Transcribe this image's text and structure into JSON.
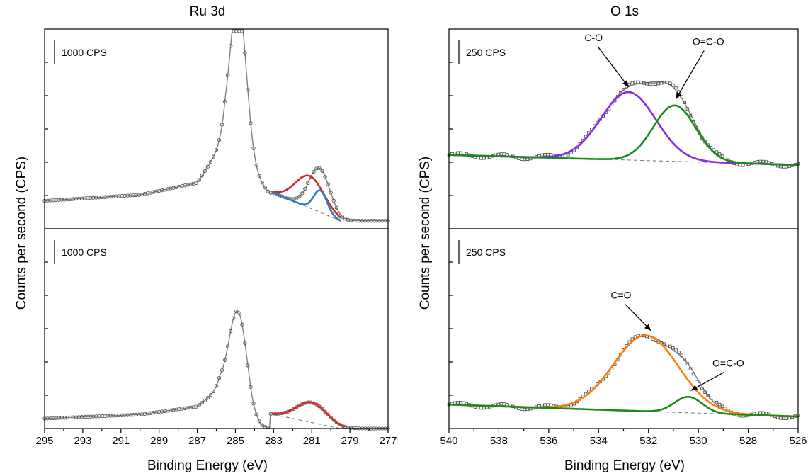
{
  "chart_data": [
    {
      "id": "ru",
      "type": "line",
      "title": "Ru 3d",
      "xlabel": "Binding Energy (eV)",
      "ylabel": "Counts per second (CPS)",
      "xlim": [
        295,
        277
      ],
      "x_ticks": [
        "295",
        "293",
        "291",
        "289",
        "287",
        "285",
        "283",
        "281",
        "279",
        "277"
      ],
      "x_tick_values": [
        295,
        293,
        291,
        289,
        287,
        285,
        283,
        281,
        279,
        277
      ],
      "panels": [
        {
          "id": "ru-top",
          "scale_label": "1000 CPS",
          "ylim": [
            0,
            1
          ],
          "background": {
            "from": [
              283,
              0.18
            ],
            "to": [
              279.5,
              0.04
            ]
          },
          "envelope": {
            "baseline": [
              [
                295,
                0.14
              ],
              [
                290,
                0.17
              ],
              [
                287,
                0.23
              ],
              [
                285.5,
                0.45
              ]
            ],
            "peaks": [
              {
                "center": 284.85,
                "height": 0.78,
                "width": 0.42
              },
              {
                "center": 280.6,
                "height": 0.22,
                "width": 0.55
              }
            ]
          },
          "series": [
            {
              "color": "#d62728",
              "center": 281.1,
              "height": 0.16,
              "width": 0.75,
              "from": 283,
              "to": 279.5
            },
            {
              "color": "#2b7bcb",
              "center": 280.55,
              "height": 0.11,
              "width": 0.35,
              "from": 283,
              "to": 279.5
            }
          ],
          "markers": "circle",
          "annotations": []
        },
        {
          "id": "ru-bottom",
          "scale_label": "1000 CPS",
          "ylim": [
            0,
            1
          ],
          "background": {
            "from": [
              283,
              0.07
            ],
            "to": [
              279.5,
              0.0
            ]
          },
          "envelope": {
            "baseline": [
              [
                295,
                0.05
              ],
              [
                290,
                0.07
              ],
              [
                287,
                0.11
              ],
              [
                285.8,
                0.2
              ]
            ],
            "peaks": [
              {
                "center": 284.85,
                "height": 0.5,
                "width": 0.48
              },
              {
                "center": 281.0,
                "height": 0.1,
                "width": 0.8
              }
            ]
          },
          "series": [
            {
              "color": "#d62728",
              "center": 281.0,
              "height": 0.1,
              "width": 0.8,
              "from": 283,
              "to": 279.3
            }
          ],
          "markers": "circle",
          "annotations": []
        }
      ]
    },
    {
      "id": "o",
      "type": "line",
      "title": "O 1s",
      "xlabel": "Binding Energy (eV)",
      "ylabel": "Counts per second (CPS)",
      "xlim": [
        540,
        526
      ],
      "x_ticks": [
        "540",
        "538",
        "536",
        "534",
        "532",
        "530",
        "528",
        "526"
      ],
      "x_tick_values": [
        540,
        538,
        536,
        534,
        532,
        530,
        528,
        526
      ],
      "panels": [
        {
          "id": "o-top",
          "scale_label": "250 CPS",
          "ylim": [
            0,
            1
          ],
          "background": {
            "from": [
              540,
              0.37
            ],
            "to": [
              526,
              0.32
            ]
          },
          "envelope": null,
          "series": [
            {
              "color": "#8a2be2",
              "center": 532.8,
              "height": 0.34,
              "width": 1.1,
              "from": 540,
              "to": 526
            },
            {
              "color": "#1a8c1a",
              "center": 530.95,
              "height": 0.28,
              "width": 0.85,
              "from": 540,
              "to": 526
            }
          ],
          "markers": "square",
          "annotations": [
            {
              "text": "C-O",
              "tip": [
                532.8,
                0.71
              ],
              "label_at": [
                534.2,
                0.94
              ]
            },
            {
              "text": "O=C-O",
              "tip": [
                530.9,
                0.65
              ],
              "label_at": [
                529.6,
                0.92
              ]
            }
          ]
        },
        {
          "id": "o-bottom",
          "scale_label": "250 CPS",
          "ylim": [
            0,
            1
          ],
          "background": {
            "from": [
              540,
              0.12
            ],
            "to": [
              526,
              0.06
            ]
          },
          "envelope": null,
          "series": [
            {
              "color": "#ff7f0e",
              "center": 532.1,
              "height": 0.38,
              "width": 1.3,
              "from": 540,
              "to": 526
            },
            {
              "color": "#1a8c1a",
              "center": 530.4,
              "height": 0.08,
              "width": 0.55,
              "from": 540,
              "to": 526
            }
          ],
          "markers": "square",
          "annotations": [
            {
              "text": "C=O",
              "tip": [
                531.9,
                0.49
              ],
              "label_at": [
                533.1,
                0.65
              ]
            },
            {
              "text": "O=C-O",
              "tip": [
                530.3,
                0.19
              ],
              "label_at": [
                528.8,
                0.31
              ]
            }
          ]
        }
      ]
    }
  ]
}
